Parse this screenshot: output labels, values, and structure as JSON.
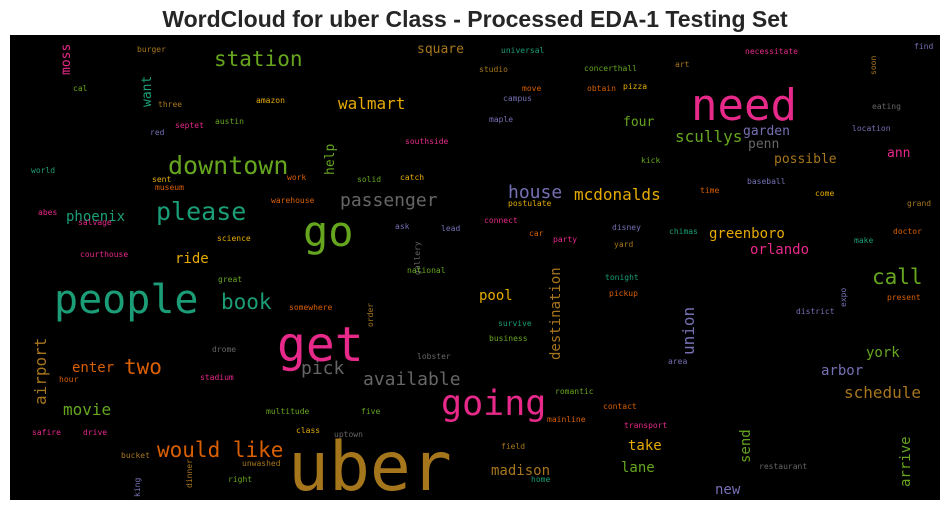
{
  "chart_data": {
    "type": "wordcloud",
    "title": "WordCloud for uber Class - Processed EDA-1 Testing Set",
    "background": "#000000",
    "colormap": "Dark2",
    "palette": [
      "#1b9e77",
      "#d95f02",
      "#7570b3",
      "#e7298a",
      "#66a61e",
      "#e6ab02",
      "#a6761d",
      "#666666"
    ],
    "words": [
      {
        "text": "uber",
        "c": 6
      },
      {
        "text": "people",
        "c": 0
      },
      {
        "text": "get",
        "c": 3
      },
      {
        "text": "need",
        "c": 3
      },
      {
        "text": "go",
        "c": 4
      },
      {
        "text": "going",
        "c": 3
      },
      {
        "text": "downtown",
        "c": 4
      },
      {
        "text": "please",
        "c": 0
      },
      {
        "text": "would like",
        "c": 1
      },
      {
        "text": "station",
        "c": 4
      },
      {
        "text": "book",
        "c": 0
      },
      {
        "text": "call",
        "c": 4
      },
      {
        "text": "two",
        "c": 1
      },
      {
        "text": "passenger",
        "c": 7
      },
      {
        "text": "available",
        "c": 7
      },
      {
        "text": "pick",
        "c": 7
      },
      {
        "text": "house",
        "c": 2
      },
      {
        "text": "mcdonalds",
        "c": 5
      },
      {
        "text": "walmart",
        "c": 5
      },
      {
        "text": "airport",
        "c": 6
      },
      {
        "text": "movie",
        "c": 4
      },
      {
        "text": "schedule",
        "c": 6
      },
      {
        "text": "scullys",
        "c": 4
      },
      {
        "text": "destination",
        "c": 6
      },
      {
        "text": "union",
        "c": 2
      },
      {
        "text": "greenboro",
        "c": 5
      },
      {
        "text": "orlando",
        "c": 3
      },
      {
        "text": "phoenix",
        "c": 0
      },
      {
        "text": "ride",
        "c": 5
      },
      {
        "text": "pool",
        "c": 5
      },
      {
        "text": "enter",
        "c": 1
      },
      {
        "text": "arbor",
        "c": 2
      },
      {
        "text": "york",
        "c": 4
      },
      {
        "text": "madison",
        "c": 6
      },
      {
        "text": "arrive",
        "c": 4
      },
      {
        "text": "take",
        "c": 5
      },
      {
        "text": "lane",
        "c": 4
      },
      {
        "text": "send",
        "c": 4
      },
      {
        "text": "new",
        "c": 2
      },
      {
        "text": "square",
        "c": 6
      },
      {
        "text": "four",
        "c": 4
      },
      {
        "text": "garden",
        "c": 2
      },
      {
        "text": "penn",
        "c": 7
      },
      {
        "text": "possible",
        "c": 6
      },
      {
        "text": "ann",
        "c": 3
      },
      {
        "text": "help",
        "c": 4
      },
      {
        "text": "want",
        "c": 0
      },
      {
        "text": "moss",
        "c": 3
      },
      {
        "text": "burger",
        "c": 6
      },
      {
        "text": "universal",
        "c": 0
      },
      {
        "text": "studio",
        "c": 6
      },
      {
        "text": "concerthall",
        "c": 4
      },
      {
        "text": "art",
        "c": 6
      },
      {
        "text": "necessitate",
        "c": 3
      },
      {
        "text": "find",
        "c": 2
      },
      {
        "text": "soon",
        "c": 6
      },
      {
        "text": "cal",
        "c": 4
      },
      {
        "text": "three",
        "c": 6
      },
      {
        "text": "amazon",
        "c": 5
      },
      {
        "text": "move",
        "c": 1
      },
      {
        "text": "obtain",
        "c": 1
      },
      {
        "text": "pizza",
        "c": 5
      },
      {
        "text": "campus",
        "c": 2
      },
      {
        "text": "eating",
        "c": 7
      },
      {
        "text": "red",
        "c": 2
      },
      {
        "text": "septet",
        "c": 3
      },
      {
        "text": "austin",
        "c": 4
      },
      {
        "text": "maple",
        "c": 2
      },
      {
        "text": "location",
        "c": 2
      },
      {
        "text": "southside",
        "c": 3
      },
      {
        "text": "kick",
        "c": 4
      },
      {
        "text": "world",
        "c": 0
      },
      {
        "text": "sent",
        "c": 5
      },
      {
        "text": "solid",
        "c": 4
      },
      {
        "text": "catch",
        "c": 5
      },
      {
        "text": "museum",
        "c": 1
      },
      {
        "text": "work",
        "c": 1
      },
      {
        "text": "time",
        "c": 1
      },
      {
        "text": "baseball",
        "c": 2
      },
      {
        "text": "come",
        "c": 5
      },
      {
        "text": "warehouse",
        "c": 1
      },
      {
        "text": "postulate",
        "c": 5
      },
      {
        "text": "grand",
        "c": 6
      },
      {
        "text": "abes",
        "c": 3
      },
      {
        "text": "salvage",
        "c": 3
      },
      {
        "text": "science",
        "c": 5
      },
      {
        "text": "ask",
        "c": 2
      },
      {
        "text": "lead",
        "c": 2
      },
      {
        "text": "gallery",
        "c": 7
      },
      {
        "text": "connect",
        "c": 3
      },
      {
        "text": "car",
        "c": 1
      },
      {
        "text": "party",
        "c": 3
      },
      {
        "text": "disney",
        "c": 2
      },
      {
        "text": "chimas",
        "c": 0
      },
      {
        "text": "yard",
        "c": 6
      },
      {
        "text": "make",
        "c": 0
      },
      {
        "text": "doctor",
        "c": 1
      },
      {
        "text": "courthouse",
        "c": 3
      },
      {
        "text": "national",
        "c": 4
      },
      {
        "text": "tonight",
        "c": 0
      },
      {
        "text": "great",
        "c": 4
      },
      {
        "text": "pickup",
        "c": 1
      },
      {
        "text": "somewhere",
        "c": 1
      },
      {
        "text": "order",
        "c": 6
      },
      {
        "text": "survive",
        "c": 0
      },
      {
        "text": "expo",
        "c": 2
      },
      {
        "text": "district",
        "c": 2
      },
      {
        "text": "present",
        "c": 1
      },
      {
        "text": "business",
        "c": 4
      },
      {
        "text": "drome",
        "c": 7
      },
      {
        "text": "lobster",
        "c": 7
      },
      {
        "text": "area",
        "c": 2
      },
      {
        "text": "hour",
        "c": 1
      },
      {
        "text": "stadium",
        "c": 3
      },
      {
        "text": "romantic",
        "c": 4
      },
      {
        "text": "mainline",
        "c": 1
      },
      {
        "text": "contact",
        "c": 1
      },
      {
        "text": "multitude",
        "c": 4
      },
      {
        "text": "five",
        "c": 4
      },
      {
        "text": "safire",
        "c": 3
      },
      {
        "text": "drive",
        "c": 3
      },
      {
        "text": "class",
        "c": 5
      },
      {
        "text": "uptown",
        "c": 7
      },
      {
        "text": "transport",
        "c": 3
      },
      {
        "text": "field",
        "c": 6
      },
      {
        "text": "bucket",
        "c": 6
      },
      {
        "text": "unwashed",
        "c": 6
      },
      {
        "text": "dinner",
        "c": 6
      },
      {
        "text": "king",
        "c": 2
      },
      {
        "text": "right",
        "c": 4
      },
      {
        "text": "home",
        "c": 0
      },
      {
        "text": "restaurant",
        "c": 7
      }
    ]
  }
}
